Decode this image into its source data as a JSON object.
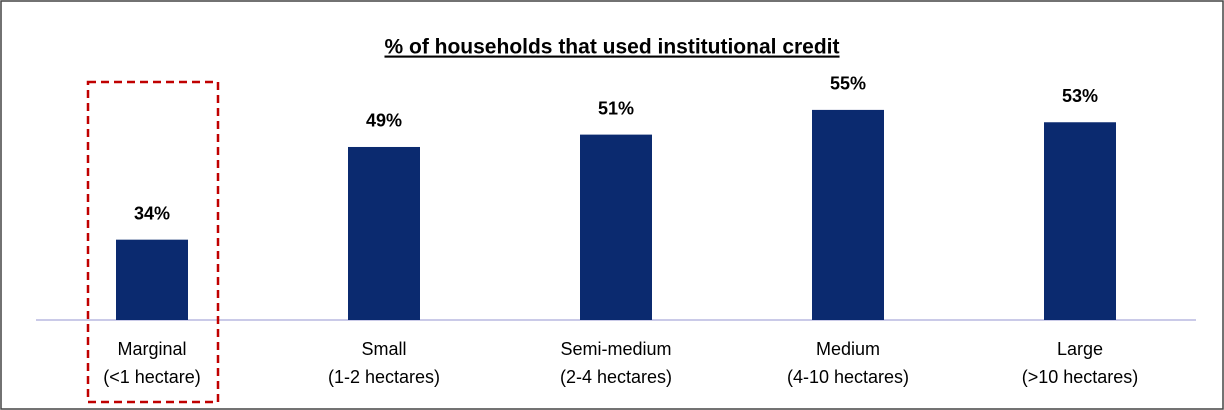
{
  "chart_data": {
    "type": "bar",
    "title": "% of households that used institutional credit",
    "categories": [
      [
        "Marginal",
        "(<1 hectare)"
      ],
      [
        "Small",
        "(1-2 hectares)"
      ],
      [
        "Semi-medium",
        "(2-4 hectares)"
      ],
      [
        "Medium",
        "(4-10 hectares)"
      ],
      [
        "Large",
        "(>10 hectares)"
      ]
    ],
    "values": [
      34,
      49,
      51,
      55,
      53
    ],
    "value_labels": [
      "34%",
      "49%",
      "51%",
      "55%",
      "53%"
    ],
    "color": "#0b2a6f",
    "ylim": [
      21,
      60
    ]
  }
}
